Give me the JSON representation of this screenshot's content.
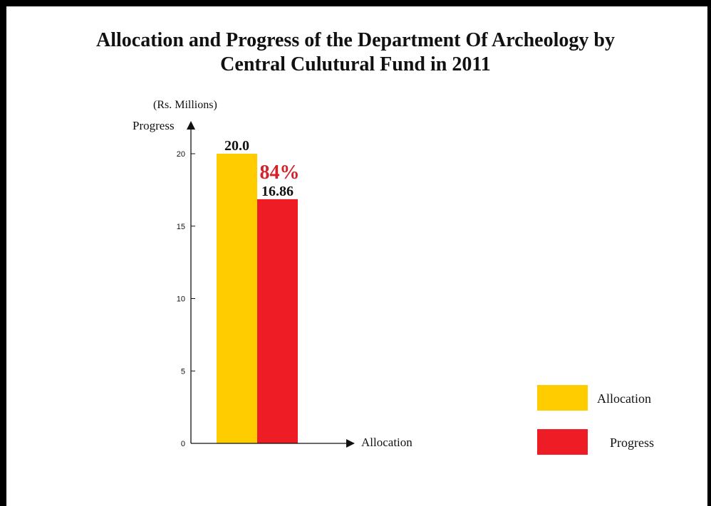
{
  "chart_data": {
    "type": "bar",
    "title_line1": "Allocation and Progress of the Department Of Archeology by",
    "title_line2": "Central Culutural Fund in 2011",
    "unit": "(Rs. Millions)",
    "ylabel": "Progress",
    "xlabel": "Allocation",
    "ylim": [
      0,
      20
    ],
    "yticks": [
      "0",
      "5",
      "10",
      "15",
      "20"
    ],
    "series": [
      {
        "name": "Allocation",
        "value": 20.0,
        "label": "20.0",
        "color": "#FFCC00"
      },
      {
        "name": "Progress",
        "value": 16.86,
        "label": "16.86",
        "color": "#EE1C25"
      }
    ],
    "annotation": {
      "text": "84%",
      "color": "#D2232A"
    },
    "legend_placement": "bottom-right",
    "grid": false
  }
}
